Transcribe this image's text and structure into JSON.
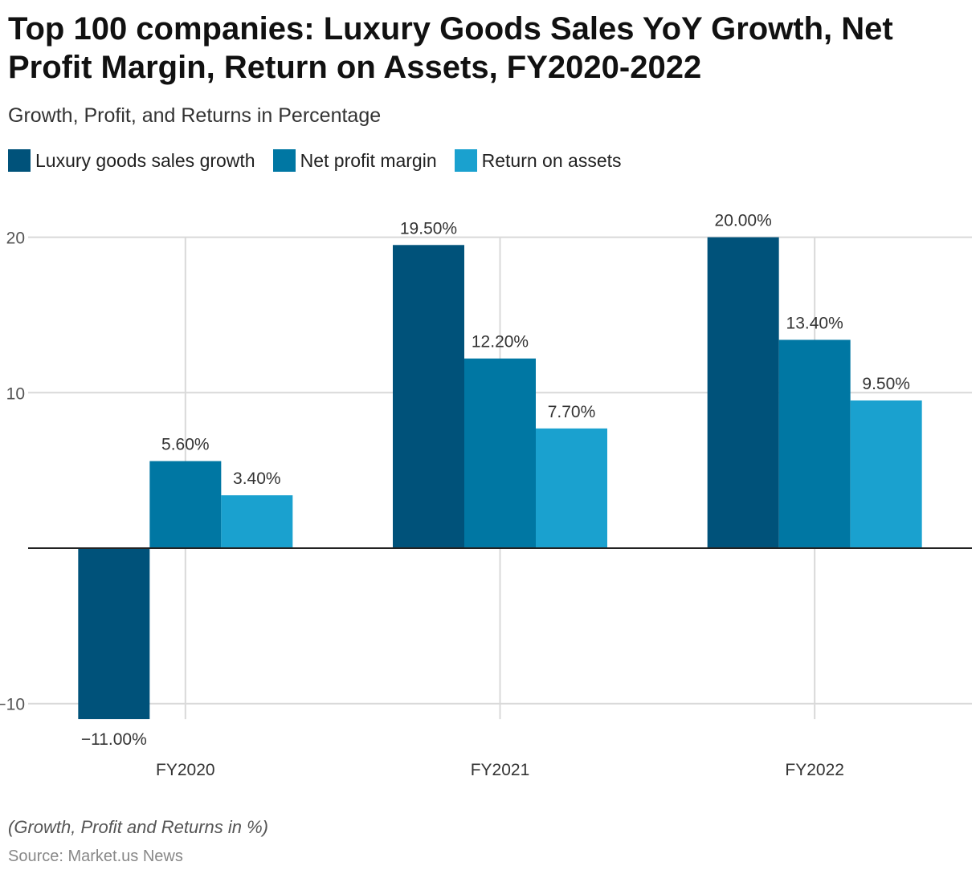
{
  "title": "Top 100 companies: Luxury Goods Sales YoY Growth, Net Profit Margin, Return on Assets, FY2020-2022",
  "subtitle": "Growth, Profit, and Returns in Percentage",
  "note": "(Growth, Profit and Returns in %)",
  "source": "Source: Market.us News",
  "chart_data": {
    "type": "bar",
    "title": "Top 100 companies: Luxury Goods Sales YoY Growth, Net Profit Margin, Return on Assets, FY2020-2022",
    "subtitle": "Growth, Profit, and Returns in Percentage",
    "xlabel": "",
    "ylabel": "",
    "categories": [
      "FY2020",
      "FY2021",
      "FY2022"
    ],
    "series": [
      {
        "name": "Luxury goods sales growth",
        "color": "#00527a",
        "values": [
          -11.0,
          19.5,
          20.0
        ],
        "labels": [
          "−11.00%",
          "19.50%",
          "20.00%"
        ]
      },
      {
        "name": "Net profit margin",
        "color": "#0077a3",
        "values": [
          5.6,
          12.2,
          13.4
        ],
        "labels": [
          "5.60%",
          "12.20%",
          "13.40%"
        ]
      },
      {
        "name": "Return on assets",
        "color": "#1aa1cf",
        "values": [
          3.4,
          7.7,
          9.5
        ],
        "labels": [
          "3.40%",
          "7.70%",
          "9.50%"
        ]
      }
    ],
    "ylim": [
      -11,
      20
    ],
    "yticks": [
      20,
      10,
      -10
    ],
    "ytick_labels": [
      "20",
      "10",
      "−10"
    ],
    "grid": true,
    "legend": "top-left"
  }
}
